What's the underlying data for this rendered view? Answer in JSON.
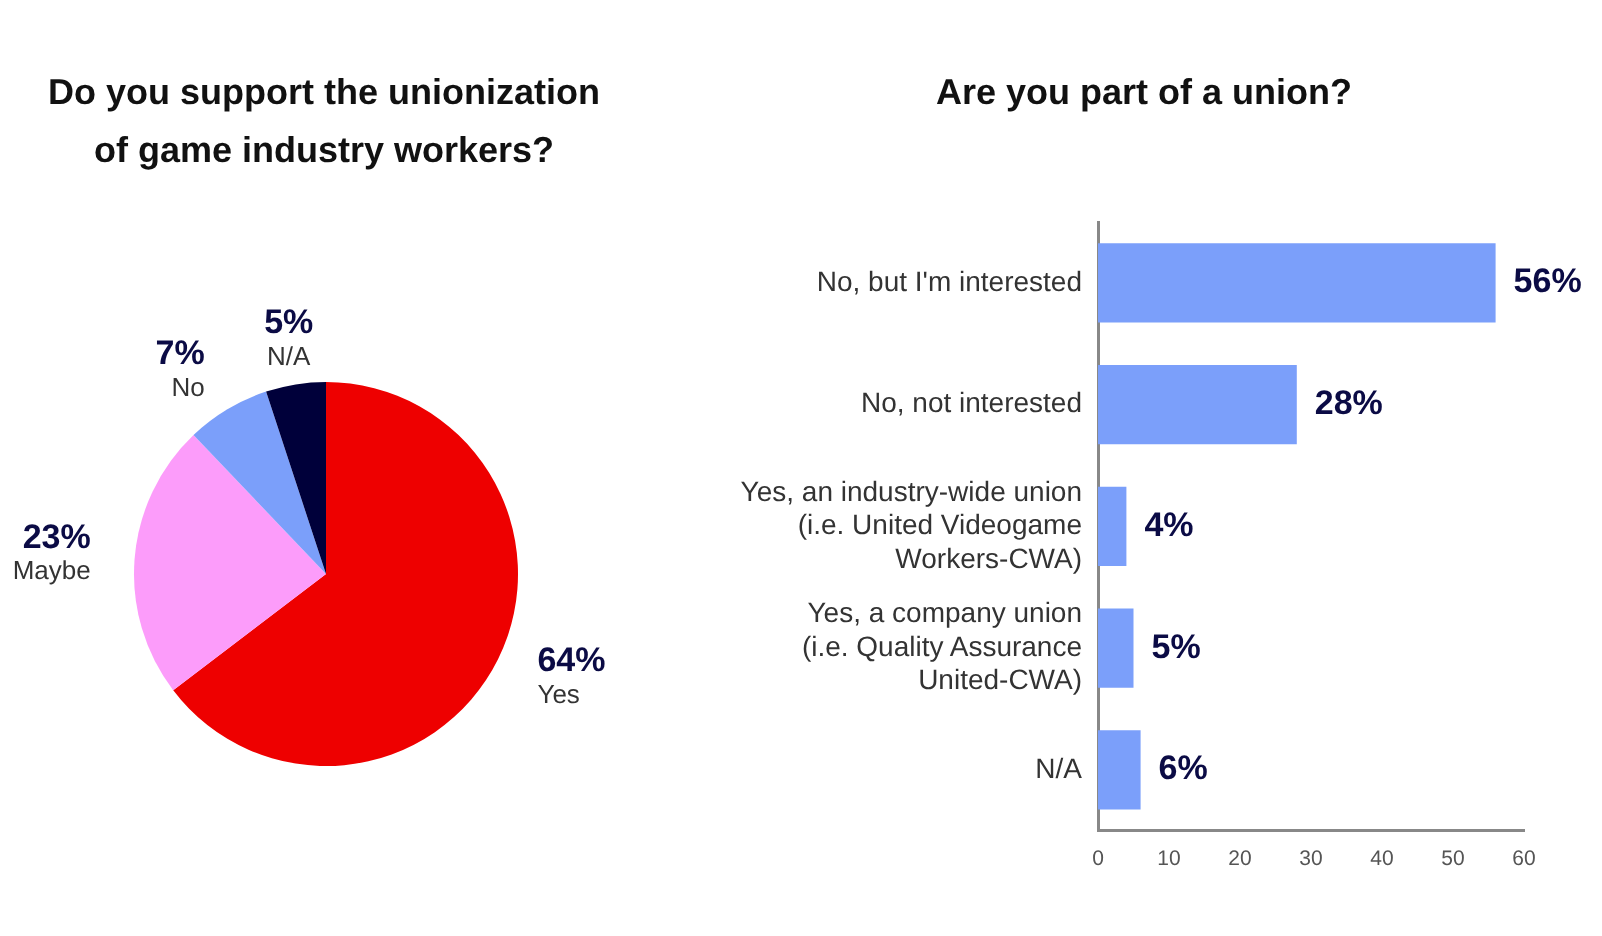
{
  "chart_data": [
    {
      "type": "pie",
      "title": "Do you support the unionization of game industry workers?",
      "categories": [
        "Yes",
        "Maybe",
        "No",
        "N/A"
      ],
      "values": [
        64,
        23,
        7,
        5
      ],
      "colors": [
        "#ee0000",
        "#fc9cfa",
        "#7b9ffa",
        "#00003a"
      ],
      "value_labels": [
        "64%",
        "23%",
        "7%",
        "5%"
      ]
    },
    {
      "type": "bar",
      "orientation": "horizontal",
      "title": "Are you part of a union?",
      "categories": [
        "No, but I'm interested",
        "No, not interested",
        "Yes, an industry-wide union (i.e. United Videogame Workers-CWA)",
        "Yes, a company union (i.e. Quality Assurance United-CWA)",
        "N/A"
      ],
      "values": [
        56,
        28,
        4,
        5,
        6
      ],
      "color": "#7b9ffa",
      "xlim": [
        0,
        60
      ],
      "xticks": [
        0,
        10,
        20,
        30,
        40,
        50,
        60
      ],
      "value_labels": [
        "56%",
        "28%",
        "4%",
        "5%",
        "6%"
      ]
    }
  ]
}
